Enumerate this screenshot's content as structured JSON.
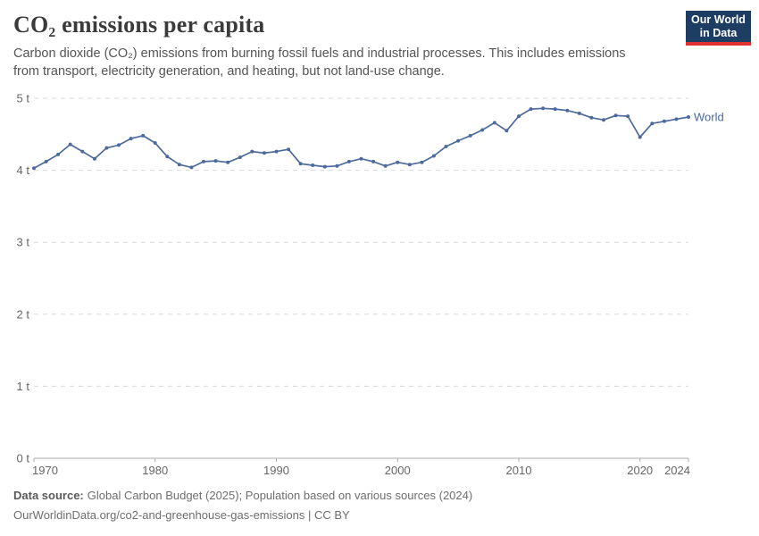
{
  "header": {
    "title": "CO₂ emissions per capita",
    "subtitle": "Carbon dioxide (CO₂) emissions from burning fossil fuels and industrial processes. This includes emissions from transport, electricity generation, and heating, but not land-use change.",
    "logo": {
      "line1": "Our World",
      "line2": "in Data"
    }
  },
  "chart_data": {
    "type": "line",
    "title": "CO₂ emissions per capita",
    "unit": "t",
    "xlabel": "",
    "ylabel": "",
    "xlim": [
      1970,
      2024
    ],
    "ylim": [
      0,
      5
    ],
    "grid": "horizontal-dashed",
    "legend_position": "end-of-line-label",
    "x_ticks": [
      1970,
      1980,
      1990,
      2000,
      2010,
      2020,
      2024
    ],
    "y_ticks": [
      {
        "value": 0,
        "label": "0 t"
      },
      {
        "value": 1,
        "label": "1 t"
      },
      {
        "value": 2,
        "label": "2 t"
      },
      {
        "value": 3,
        "label": "3 t"
      },
      {
        "value": 4,
        "label": "4 t"
      },
      {
        "value": 5,
        "label": "5 t"
      }
    ],
    "series": [
      {
        "name": "World",
        "color": "#4C6A9C",
        "x": [
          1970,
          1971,
          1972,
          1973,
          1974,
          1975,
          1976,
          1977,
          1978,
          1979,
          1980,
          1981,
          1982,
          1983,
          1984,
          1985,
          1986,
          1987,
          1988,
          1989,
          1990,
          1991,
          1992,
          1993,
          1994,
          1995,
          1996,
          1997,
          1998,
          1999,
          2000,
          2001,
          2002,
          2003,
          2004,
          2005,
          2006,
          2007,
          2008,
          2009,
          2010,
          2011,
          2012,
          2013,
          2014,
          2015,
          2016,
          2017,
          2018,
          2019,
          2020,
          2021,
          2022,
          2023,
          2024
        ],
        "values": [
          4.03,
          4.12,
          4.22,
          4.36,
          4.26,
          4.16,
          4.31,
          4.35,
          4.44,
          4.48,
          4.38,
          4.19,
          4.08,
          4.04,
          4.12,
          4.13,
          4.11,
          4.18,
          4.26,
          4.24,
          4.26,
          4.29,
          4.09,
          4.07,
          4.05,
          4.06,
          4.12,
          4.16,
          4.12,
          4.06,
          4.11,
          4.08,
          4.11,
          4.2,
          4.33,
          4.41,
          4.48,
          4.56,
          4.66,
          4.55,
          4.75,
          4.85,
          4.86,
          4.85,
          4.83,
          4.79,
          4.73,
          4.7,
          4.76,
          4.75,
          4.46,
          4.65,
          4.68,
          4.71,
          4.74
        ]
      }
    ]
  },
  "footer": {
    "source_label": "Data source:",
    "source_text": "Global Carbon Budget (2025); Population based on various sources (2024)",
    "link_text": "OurWorldinData.org/co2-and-greenhouse-gas-emissions | CC BY"
  },
  "colors": {
    "line": "#4C6A9C",
    "logo_navy": "#1d3d63",
    "logo_red": "#e0322f",
    "grid": "#d9d9d9",
    "axis": "#a8a8a8",
    "tick_label": "#666666",
    "title": "#3b3b3b",
    "subtitle": "#555555",
    "footer": "#6e6e6e"
  }
}
